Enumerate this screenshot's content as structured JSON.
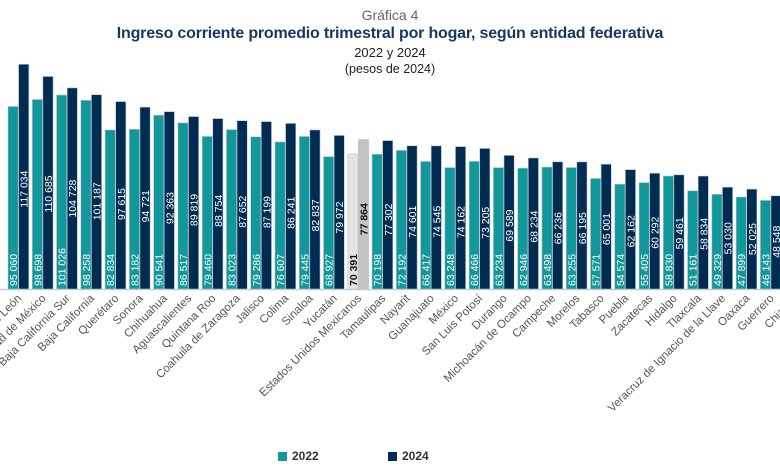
{
  "header": {
    "kicker": "Gráfica 4",
    "title": "Ingreso corriente promedio trimestral por hogar, según entidad federativa",
    "subtitle": "2022 y 2024",
    "units": "(pesos de 2024)"
  },
  "colors": {
    "s2022": "#12979a",
    "s2024": "#002c52",
    "national2022": "#e3e3e3",
    "national2024": "#c3c3c3"
  },
  "chart_data": {
    "type": "bar",
    "title": "Ingreso corriente promedio trimestral por hogar, según entidad federativa",
    "ylim": [
      0,
      125000
    ],
    "grid": false,
    "legend": "bottom",
    "highlight_category": "Estados Unidos Mexicanos",
    "categories": [
      "Nuevo León",
      "Ciudad de México",
      "Baja California Sur",
      "Baja California",
      "Querétaro",
      "Sonora",
      "Chihuahua",
      "Aguascalientes",
      "Quintana Roo",
      "Coahuila de Zaragoza",
      "Jalisco",
      "Colima",
      "Sinaloa",
      "Yucatán",
      "Estados Unidos Mexicanos",
      "Tamaulipas",
      "Nayarit",
      "Guanajuato",
      "México",
      "San Luis Potosí",
      "Durango",
      "Michoacán de Ocampo",
      "Campeche",
      "Morelos",
      "Tabasco",
      "Puebla",
      "Zacatecas",
      "Hidalgo",
      "Tlaxcala",
      "Veracruz de Ignacio de la Llave",
      "Oaxaca",
      "Guerrero",
      "Chiapas"
    ],
    "series": [
      {
        "name": "2022",
        "values": [
          95060,
          98698,
          101026,
          98258,
          82834,
          83182,
          90541,
          86517,
          79460,
          83023,
          79286,
          76607,
          79445,
          68927,
          70391,
          70198,
          72192,
          66417,
          63248,
          66466,
          63234,
          62946,
          63498,
          63255,
          57571,
          54574,
          55405,
          58830,
          51161,
          49329,
          47899,
          46143,
          null
        ]
      },
      {
        "name": "2024",
        "values": [
          117034,
          110685,
          104728,
          101187,
          97615,
          94721,
          92363,
          89819,
          88754,
          87652,
          87199,
          86241,
          82837,
          79972,
          77864,
          77302,
          74601,
          74545,
          74162,
          73205,
          69589,
          68234,
          66236,
          66195,
          65001,
          62162,
          60292,
          59461,
          58834,
          53030,
          52025,
          48548,
          null
        ]
      }
    ]
  }
}
